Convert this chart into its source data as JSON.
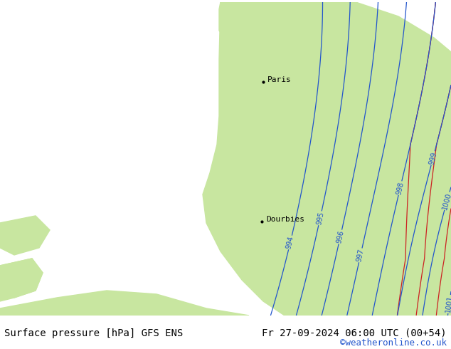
{
  "title_left": "Surface pressure [hPa] GFS ENS",
  "title_right": "Fr 27-09-2024 06:00 UTC (00+54)",
  "credit": "©weatheronline.co.uk",
  "sea_color": "#d8d8d8",
  "land_color": "#c8e6a0",
  "isobar_color_blue": "#2255cc",
  "isobar_color_black": "#000000",
  "isobar_color_red": "#cc2222",
  "text_color": "#000000",
  "credit_color": "#2255cc",
  "font_size_title": 10,
  "font_size_credit": 9,
  "dpi": 100,
  "figsize": [
    6.34,
    4.9
  ]
}
